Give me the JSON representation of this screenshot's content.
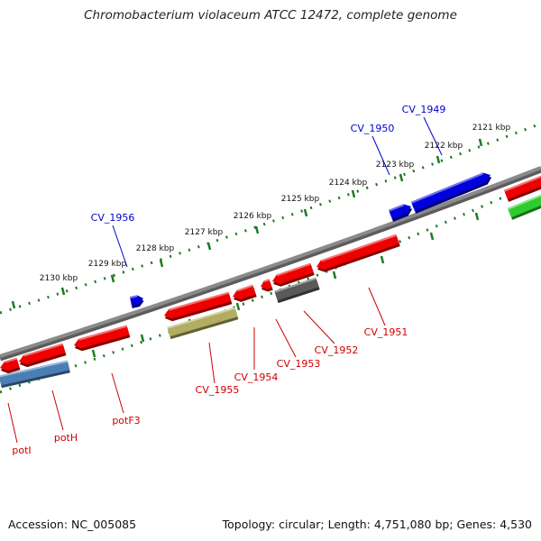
{
  "title": "Chromobacterium violaceum ATCC 12472, complete genome",
  "footer": {
    "accession": "Accession: NC_005085",
    "summary": "Topology: circular; Length: 4,751,080 bp; Genes: 4,530"
  },
  "ruler": {
    "unit": "kbp",
    "ticks": [
      "2121 kbp",
      "2122 kbp",
      "2123 kbp",
      "2124 kbp",
      "2125 kbp",
      "2126 kbp",
      "2127 kbp",
      "2128 kbp",
      "2129 kbp",
      "2130 kbp"
    ]
  },
  "colors": {
    "backbone": "#8a8a8a",
    "tick_track": "#1f7a1f",
    "forward_gene": "#0000dd",
    "reverse_gene": "#ee0000",
    "forward_label": "#0000cc",
    "reverse_label": "#cc0000",
    "gray_gene": "#5a5a5a",
    "olive_gene": "#b3ad62",
    "steel_gene": "#4a7fb5",
    "green_gene": "#2ecc2e"
  },
  "genes": {
    "forward": [
      "CV_1949",
      "CV_1950",
      "CV_1956"
    ],
    "reverse": [
      "CV_1951",
      "CV_1952",
      "CV_1953",
      "CV_1954",
      "CV_1955",
      "potF3",
      "potH",
      "potI"
    ]
  }
}
